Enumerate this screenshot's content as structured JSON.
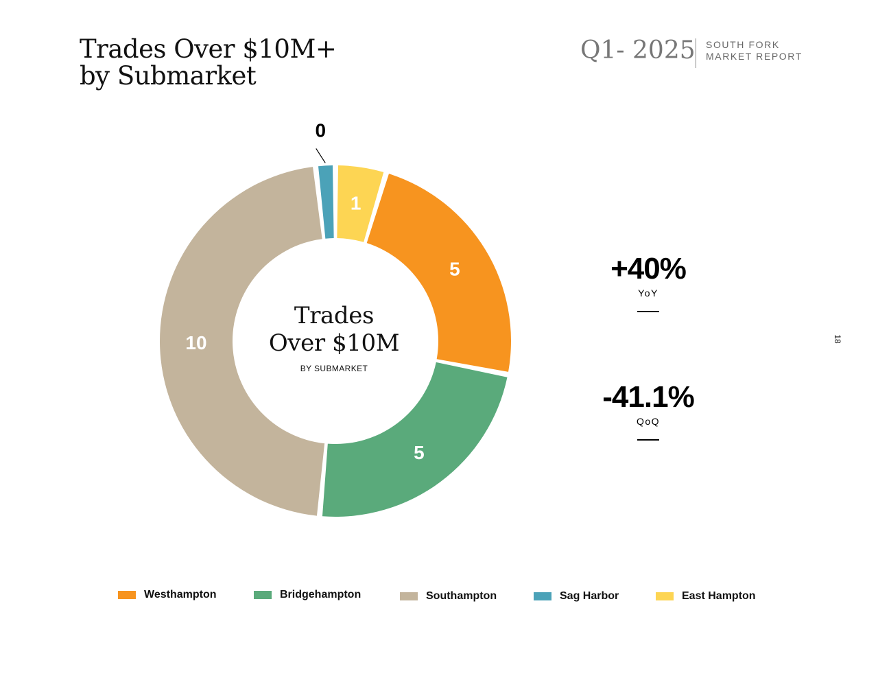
{
  "header": {
    "title_line1": "Trades Over $10M+",
    "title_line2": "by Submarket",
    "period": "Q1- 2025",
    "report_line1": "SOUTH FORK",
    "report_line2": "MARKET REPORT"
  },
  "center": {
    "title_line1": "Trades",
    "title_line2": "Over $10M",
    "subtitle": "BY SUBMARKET"
  },
  "stats": [
    {
      "value": "+40%",
      "label": "YoY"
    },
    {
      "value": "-41.1%",
      "label": "QoQ"
    }
  ],
  "page_number": "18",
  "chart_data": {
    "type": "pie",
    "style": "donut",
    "categories": [
      "East Hampton",
      "Westhampton",
      "Bridgehampton",
      "Southampton",
      "Sag Harbor"
    ],
    "values": [
      1,
      5,
      5,
      10,
      0
    ],
    "labels": [
      "1",
      "5",
      "5",
      "10",
      "0"
    ],
    "colors": [
      "#FDD553",
      "#F7941F",
      "#5AAA7B",
      "#C3B49C",
      "#4BA2B8"
    ],
    "legend": [
      {
        "name": "Westhampton",
        "color": "#F7941F"
      },
      {
        "name": "Bridgehampton",
        "color": "#5AAA7B"
      },
      {
        "name": "Southampton",
        "color": "#C3B49C"
      },
      {
        "name": "Sag Harbor",
        "color": "#4BA2B8"
      },
      {
        "name": "East Hampton",
        "color": "#FDD553"
      }
    ],
    "legend_position": "bottom"
  }
}
